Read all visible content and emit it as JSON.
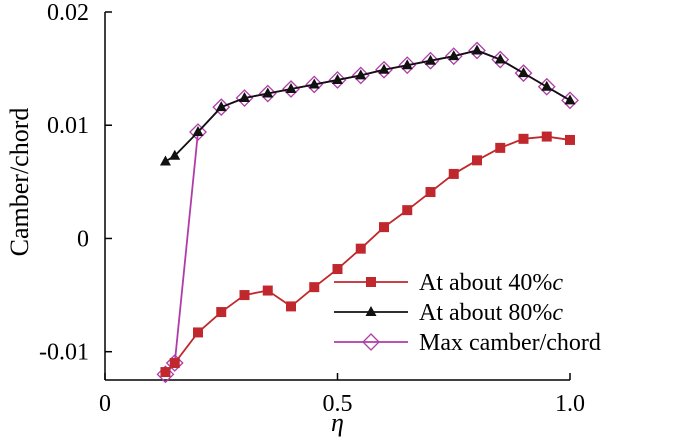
{
  "chart_data": {
    "type": "line",
    "title": "",
    "xlabel": "η",
    "ylabel": "Camber/chord",
    "xlim": [
      0,
      1.0
    ],
    "ylim": [
      -0.0125,
      0.02
    ],
    "grid": false,
    "legend_position": "bottom-right",
    "x_ticks": [
      {
        "value": 0,
        "label": "0"
      },
      {
        "value": 0.5,
        "label": "0.5"
      },
      {
        "value": 1.0,
        "label": "1.0"
      }
    ],
    "y_ticks": [
      {
        "value": -0.01,
        "label": "-0.01"
      },
      {
        "value": 0,
        "label": "0"
      },
      {
        "value": 0.01,
        "label": "0.01"
      },
      {
        "value": 0.02,
        "label": "0.02"
      }
    ],
    "series": [
      {
        "name": "At about 40%c",
        "legend_prefix": "At about 40%",
        "legend_italic": "c",
        "color": "#c0282d",
        "marker": "square",
        "x": [
          0.13,
          0.15,
          0.2,
          0.25,
          0.3,
          0.35,
          0.4,
          0.45,
          0.5,
          0.55,
          0.6,
          0.65,
          0.7,
          0.75,
          0.8,
          0.85,
          0.9,
          0.95,
          1.0
        ],
        "y": [
          -0.0118,
          -0.011,
          -0.0083,
          -0.0065,
          -0.005,
          -0.0046,
          -0.006,
          -0.0043,
          -0.0027,
          -0.0009,
          0.001,
          0.0025,
          0.0041,
          0.0057,
          0.0069,
          0.008,
          0.0088,
          0.009,
          0.0087
        ]
      },
      {
        "name": "At about 80%c",
        "legend_prefix": "At about 80%",
        "legend_italic": "c",
        "color": "#111111",
        "marker": "triangle",
        "x": [
          0.13,
          0.15,
          0.2,
          0.25,
          0.3,
          0.35,
          0.4,
          0.45,
          0.5,
          0.55,
          0.6,
          0.65,
          0.7,
          0.75,
          0.8,
          0.85,
          0.9,
          0.95,
          1.0
        ],
        "y": [
          0.0068,
          0.0073,
          0.0094,
          0.0116,
          0.0124,
          0.0128,
          0.0132,
          0.0136,
          0.014,
          0.0144,
          0.0149,
          0.0153,
          0.0157,
          0.0161,
          0.0166,
          0.0158,
          0.0146,
          0.0134,
          0.0122
        ]
      },
      {
        "name": "Max camber/chord",
        "legend_prefix": "Max camber/chord",
        "legend_italic": "",
        "color": "#b03ca8",
        "marker": "diamond",
        "x": [
          0.13,
          0.15,
          0.2,
          0.25,
          0.3,
          0.35,
          0.4,
          0.45,
          0.5,
          0.55,
          0.6,
          0.65,
          0.7,
          0.75,
          0.8,
          0.85,
          0.9,
          0.95,
          1.0
        ],
        "y": [
          -0.012,
          -0.011,
          0.0094,
          0.0116,
          0.0124,
          0.0128,
          0.0132,
          0.0136,
          0.014,
          0.0144,
          0.0149,
          0.0153,
          0.0157,
          0.0161,
          0.0166,
          0.0158,
          0.0146,
          0.0134,
          0.0122
        ]
      }
    ]
  }
}
